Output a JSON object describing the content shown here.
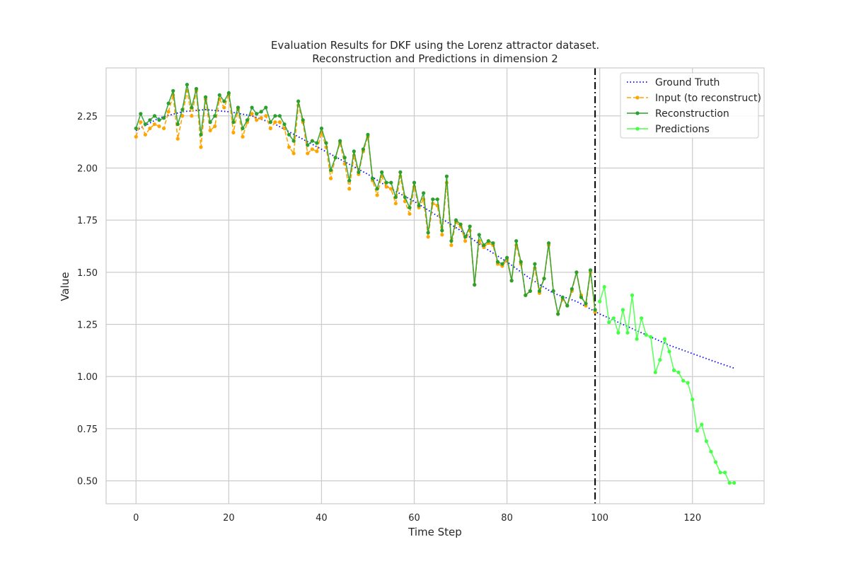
{
  "chart_data": {
    "type": "line",
    "title": "Evaluation Results for DKF using the Lorenz attractor dataset.",
    "subtitle": "Reconstruction and Predictions in dimension 2",
    "xlabel": "Time Step",
    "ylabel": "Value",
    "xlim": [
      -6.45,
      135.45
    ],
    "ylim": [
      0.39,
      2.48
    ],
    "xticks": [
      0,
      20,
      40,
      60,
      80,
      100,
      120
    ],
    "yticks": [
      0.5,
      0.75,
      1.0,
      1.25,
      1.5,
      1.75,
      2.0,
      2.25
    ],
    "xtick_labels": [
      "0",
      "20",
      "40",
      "60",
      "80",
      "100",
      "120"
    ],
    "ytick_labels": [
      "0.50",
      "0.75",
      "1.00",
      "1.25",
      "1.50",
      "1.75",
      "2.00",
      "2.25"
    ],
    "grid": true,
    "legend_position": "top-right",
    "vertical_line_x": 99,
    "series": [
      {
        "name": "Ground Truth",
        "color": "#0000ff",
        "style": "dotted",
        "x": [
          0,
          5,
          10,
          15,
          20,
          25,
          30,
          35,
          40,
          45,
          50,
          55,
          60,
          65,
          70,
          75,
          80,
          85,
          90,
          95,
          100,
          105,
          110,
          115,
          120,
          125,
          129
        ],
        "y": [
          2.18,
          2.24,
          2.27,
          2.28,
          2.27,
          2.25,
          2.21,
          2.15,
          2.09,
          2.03,
          1.97,
          1.9,
          1.84,
          1.77,
          1.7,
          1.62,
          1.55,
          1.47,
          1.4,
          1.36,
          1.3,
          1.25,
          1.2,
          1.15,
          1.11,
          1.07,
          1.04
        ]
      },
      {
        "name": "Input (to reconstruct)",
        "color": "#ffa500",
        "style": "dashed",
        "x": [
          0,
          1,
          2,
          3,
          4,
          5,
          6,
          7,
          8,
          9,
          10,
          11,
          12,
          13,
          14,
          15,
          16,
          17,
          18,
          19,
          20,
          21,
          22,
          23,
          24,
          25,
          26,
          27,
          28,
          29,
          30,
          31,
          32,
          33,
          34,
          35,
          36,
          37,
          38,
          39,
          40,
          41,
          42,
          43,
          44,
          45,
          46,
          47,
          48,
          49,
          50,
          51,
          52,
          53,
          54,
          55,
          56,
          57,
          58,
          59,
          60,
          61,
          62,
          63,
          64,
          65,
          66,
          67,
          68,
          69,
          70,
          71,
          72,
          73,
          74,
          75,
          76,
          77,
          78,
          79,
          80,
          81,
          82,
          83,
          84,
          85,
          86,
          87,
          88,
          89,
          90,
          91,
          92,
          93,
          94,
          95,
          96,
          97,
          98,
          99
        ],
        "y": [
          2.15,
          2.22,
          2.16,
          2.19,
          2.21,
          2.2,
          2.19,
          2.27,
          2.35,
          2.14,
          2.25,
          2.37,
          2.25,
          2.37,
          2.1,
          2.33,
          2.18,
          2.2,
          2.33,
          2.29,
          2.35,
          2.17,
          2.28,
          2.15,
          2.22,
          2.26,
          2.23,
          2.24,
          2.25,
          2.19,
          2.22,
          2.22,
          2.19,
          2.1,
          2.07,
          2.3,
          2.22,
          2.07,
          2.09,
          2.08,
          2.17,
          2.1,
          1.95,
          2.05,
          2.12,
          2.02,
          1.9,
          2.06,
          1.97,
          2.08,
          2.15,
          1.94,
          1.87,
          1.96,
          1.91,
          1.9,
          1.83,
          1.96,
          1.84,
          1.78,
          1.91,
          1.81,
          1.85,
          1.67,
          1.83,
          1.82,
          1.68,
          1.93,
          1.63,
          1.74,
          1.72,
          1.65,
          1.7,
          1.44,
          1.65,
          1.62,
          1.64,
          1.63,
          1.54,
          1.53,
          1.56,
          1.46,
          1.63,
          1.54,
          1.39,
          1.41,
          1.52,
          1.4,
          1.47,
          1.63,
          1.41,
          1.3,
          1.37,
          1.34,
          1.41,
          1.5,
          1.39,
          1.34,
          1.5,
          1.31
        ]
      },
      {
        "name": "Reconstruction",
        "color": "#2ca02c",
        "style": "solid",
        "x": [
          0,
          1,
          2,
          3,
          4,
          5,
          6,
          7,
          8,
          9,
          10,
          11,
          12,
          13,
          14,
          15,
          16,
          17,
          18,
          19,
          20,
          21,
          22,
          23,
          24,
          25,
          26,
          27,
          28,
          29,
          30,
          31,
          32,
          33,
          34,
          35,
          36,
          37,
          38,
          39,
          40,
          41,
          42,
          43,
          44,
          45,
          46,
          47,
          48,
          49,
          50,
          51,
          52,
          53,
          54,
          55,
          56,
          57,
          58,
          59,
          60,
          61,
          62,
          63,
          64,
          65,
          66,
          67,
          68,
          69,
          70,
          71,
          72,
          73,
          74,
          75,
          76,
          77,
          78,
          79,
          80,
          81,
          82,
          83,
          84,
          85,
          86,
          87,
          88,
          89,
          90,
          91,
          92,
          93,
          94,
          95,
          96,
          97,
          98,
          99
        ],
        "y": [
          2.19,
          2.26,
          2.21,
          2.23,
          2.25,
          2.23,
          2.24,
          2.31,
          2.37,
          2.21,
          2.28,
          2.4,
          2.29,
          2.38,
          2.16,
          2.34,
          2.22,
          2.25,
          2.35,
          2.32,
          2.36,
          2.22,
          2.29,
          2.19,
          2.23,
          2.29,
          2.26,
          2.27,
          2.29,
          2.22,
          2.25,
          2.25,
          2.21,
          2.16,
          2.13,
          2.32,
          2.23,
          2.11,
          2.13,
          2.12,
          2.19,
          2.12,
          1.99,
          2.05,
          2.13,
          2.05,
          1.94,
          2.08,
          1.98,
          2.09,
          2.16,
          1.95,
          1.9,
          1.98,
          1.93,
          1.93,
          1.86,
          1.98,
          1.86,
          1.81,
          1.93,
          1.82,
          1.88,
          1.69,
          1.85,
          1.85,
          1.7,
          1.96,
          1.65,
          1.75,
          1.73,
          1.67,
          1.72,
          1.44,
          1.68,
          1.63,
          1.65,
          1.64,
          1.55,
          1.54,
          1.57,
          1.46,
          1.65,
          1.55,
          1.39,
          1.41,
          1.54,
          1.41,
          1.47,
          1.64,
          1.41,
          1.3,
          1.38,
          1.34,
          1.42,
          1.5,
          1.38,
          1.35,
          1.51,
          1.32
        ]
      },
      {
        "name": "Predictions",
        "color": "#44ff44",
        "style": "solid",
        "x": [
          100,
          101,
          102,
          103,
          104,
          105,
          106,
          107,
          108,
          109,
          110,
          111,
          112,
          113,
          114,
          115,
          116,
          117,
          118,
          119,
          120,
          121,
          122,
          123,
          124,
          125,
          126,
          127,
          128,
          129
        ],
        "y": [
          1.36,
          1.43,
          1.26,
          1.28,
          1.21,
          1.32,
          1.21,
          1.39,
          1.18,
          1.28,
          1.2,
          1.19,
          1.02,
          1.08,
          1.18,
          1.12,
          1.03,
          1.02,
          0.98,
          0.97,
          0.89,
          0.74,
          0.77,
          0.69,
          0.64,
          0.59,
          0.54,
          0.54,
          0.49,
          0.49
        ]
      }
    ]
  }
}
